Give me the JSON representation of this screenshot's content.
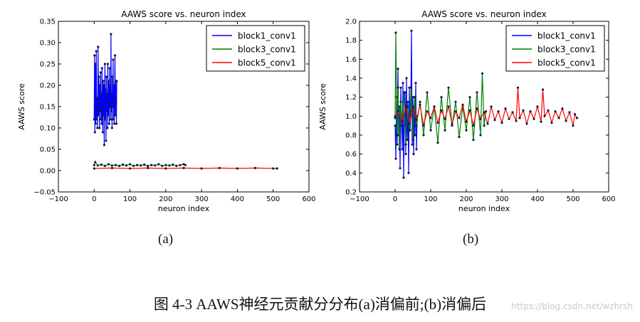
{
  "caption": "图 4-3 AAWS神经元贡献分分布(a)消偏前;(b)消偏后",
  "watermark": "https://blog.csdn.net/wzhrsh",
  "chart_data": [
    {
      "panel_label": "(a)",
      "type": "line",
      "title": "AAWS score vs. neuron index",
      "xlabel": "neuron index",
      "ylabel": "AAWS score",
      "xlim": [
        -100,
        600
      ],
      "ylim": [
        -0.05,
        0.35
      ],
      "xticks": [
        "−100",
        "0",
        "100",
        "200",
        "300",
        "400",
        "500",
        "600"
      ],
      "xtick_values": [
        -100,
        0,
        100,
        200,
        300,
        400,
        500,
        600
      ],
      "yticks": [
        "−0.05",
        "0.00",
        "0.05",
        "0.10",
        "0.15",
        "0.20",
        "0.25",
        "0.30",
        "0.35"
      ],
      "ytick_values": [
        -0.05,
        0,
        0.05,
        0.1,
        0.15,
        0.2,
        0.25,
        0.3,
        0.35
      ],
      "legend_position": "top-right",
      "grid": false,
      "series": [
        {
          "name": "block1_conv1",
          "color": "#0000ff",
          "points": [
            [
              0,
              0.12
            ],
            [
              1,
              0.27
            ],
            [
              2,
              0.09
            ],
            [
              3,
              0.25
            ],
            [
              4,
              0.11
            ],
            [
              5,
              0.15
            ],
            [
              6,
              0.28
            ],
            [
              7,
              0.12
            ],
            [
              8,
              0.17
            ],
            [
              9,
              0.1
            ],
            [
              10,
              0.14
            ],
            [
              11,
              0.29
            ],
            [
              12,
              0.13
            ],
            [
              13,
              0.22
            ],
            [
              14,
              0.16
            ],
            [
              15,
              0.1
            ],
            [
              16,
              0.2
            ],
            [
              17,
              0.14
            ],
            [
              18,
              0.23
            ],
            [
              19,
              0.12
            ],
            [
              20,
              0.18
            ],
            [
              21,
              0.11
            ],
            [
              22,
              0.24
            ],
            [
              23,
              0.15
            ],
            [
              24,
              0.09
            ],
            [
              25,
              0.21
            ],
            [
              26,
              0.13
            ],
            [
              27,
              0.2
            ],
            [
              28,
              0.06
            ],
            [
              29,
              0.17
            ],
            [
              30,
              0.25
            ],
            [
              31,
              0.12
            ],
            [
              32,
              0.19
            ],
            [
              33,
              0.07
            ],
            [
              34,
              0.22
            ],
            [
              35,
              0.14
            ],
            [
              36,
              0.18
            ],
            [
              37,
              0.1
            ],
            [
              38,
              0.25
            ],
            [
              39,
              0.13
            ],
            [
              40,
              0.21
            ],
            [
              41,
              0.16
            ],
            [
              42,
              0.11
            ],
            [
              43,
              0.24
            ],
            [
              44,
              0.15
            ],
            [
              45,
              0.2
            ],
            [
              46,
              0.12
            ],
            [
              47,
              0.32
            ],
            [
              48,
              0.14
            ],
            [
              49,
              0.18
            ],
            [
              50,
              0.1
            ],
            [
              51,
              0.22
            ],
            [
              52,
              0.15
            ],
            [
              53,
              0.26
            ],
            [
              54,
              0.12
            ],
            [
              55,
              0.2
            ],
            [
              56,
              0.11
            ],
            [
              57,
              0.17
            ],
            [
              58,
              0.27
            ],
            [
              59,
              0.13
            ],
            [
              60,
              0.21
            ],
            [
              61,
              0.16
            ],
            [
              62,
              0.11
            ],
            [
              63,
              0.21
            ]
          ]
        },
        {
          "name": "block3_conv1",
          "color": "#008000",
          "points": [
            [
              0,
              0.013
            ],
            [
              3,
              0.02
            ],
            [
              10,
              0.012
            ],
            [
              20,
              0.014
            ],
            [
              30,
              0.011
            ],
            [
              40,
              0.015
            ],
            [
              50,
              0.012
            ],
            [
              60,
              0.013
            ],
            [
              70,
              0.011
            ],
            [
              80,
              0.014
            ],
            [
              90,
              0.012
            ],
            [
              100,
              0.015
            ],
            [
              110,
              0.011
            ],
            [
              120,
              0.013
            ],
            [
              130,
              0.012
            ],
            [
              140,
              0.014
            ],
            [
              150,
              0.011
            ],
            [
              160,
              0.013
            ],
            [
              170,
              0.012
            ],
            [
              180,
              0.015
            ],
            [
              190,
              0.011
            ],
            [
              200,
              0.013
            ],
            [
              210,
              0.012
            ],
            [
              220,
              0.014
            ],
            [
              230,
              0.011
            ],
            [
              240,
              0.013
            ],
            [
              250,
              0.015
            ],
            [
              255,
              0.013
            ]
          ]
        },
        {
          "name": "block5_conv1",
          "color": "#ff0000",
          "points": [
            [
              0,
              0.005
            ],
            [
              50,
              0.006
            ],
            [
              100,
              0.005
            ],
            [
              150,
              0.006
            ],
            [
              200,
              0.005
            ],
            [
              250,
              0.006
            ],
            [
              300,
              0.005
            ],
            [
              350,
              0.006
            ],
            [
              400,
              0.005
            ],
            [
              450,
              0.006
            ],
            [
              500,
              0.005
            ],
            [
              511,
              0.005
            ]
          ]
        }
      ]
    },
    {
      "panel_label": "(b)",
      "type": "line",
      "title": "AAWS score vs. neuron index",
      "xlabel": "neuron index",
      "ylabel": "AAWS score",
      "xlim": [
        -100,
        600
      ],
      "ylim": [
        0.2,
        2.0
      ],
      "xticks": [
        "−100",
        "0",
        "100",
        "200",
        "300",
        "400",
        "500",
        "600"
      ],
      "xtick_values": [
        -100,
        0,
        100,
        200,
        300,
        400,
        500,
        600
      ],
      "yticks": [
        "0.2",
        "0.4",
        "0.6",
        "0.8",
        "1.0",
        "1.2",
        "1.4",
        "1.6",
        "1.8",
        "2.0"
      ],
      "ytick_values": [
        0.2,
        0.4,
        0.6,
        0.8,
        1.0,
        1.2,
        1.4,
        1.6,
        1.8,
        2.0
      ],
      "legend_position": "top-right",
      "grid": false,
      "series": [
        {
          "name": "block1_conv1",
          "color": "#0000ff",
          "points": [
            [
              0,
              0.9
            ],
            [
              2,
              0.55
            ],
            [
              4,
              1.2
            ],
            [
              6,
              0.7
            ],
            [
              8,
              1.5
            ],
            [
              10,
              0.8
            ],
            [
              12,
              1.1
            ],
            [
              14,
              0.45
            ],
            [
              16,
              1.3
            ],
            [
              18,
              0.9
            ],
            [
              20,
              0.65
            ],
            [
              22,
              1.35
            ],
            [
              24,
              0.35
            ],
            [
              26,
              1.0
            ],
            [
              28,
              1.25
            ],
            [
              30,
              0.6
            ],
            [
              32,
              1.4
            ],
            [
              34,
              0.75
            ],
            [
              36,
              1.15
            ],
            [
              38,
              0.4
            ],
            [
              40,
              1.3
            ],
            [
              42,
              0.85
            ],
            [
              44,
              1.05
            ],
            [
              46,
              1.9
            ],
            [
              48,
              0.7
            ],
            [
              50,
              1.2
            ],
            [
              52,
              0.6
            ],
            [
              54,
              1.1
            ],
            [
              56,
              0.8
            ],
            [
              58,
              1.35
            ],
            [
              60,
              0.65
            ],
            [
              62,
              1.0
            ]
          ]
        },
        {
          "name": "block3_conv1",
          "color": "#008000",
          "points": [
            [
              0,
              1.0
            ],
            [
              2,
              1.88
            ],
            [
              5,
              0.8
            ],
            [
              8,
              1.3
            ],
            [
              12,
              0.65
            ],
            [
              16,
              1.15
            ],
            [
              20,
              0.9
            ],
            [
              25,
              1.25
            ],
            [
              30,
              0.7
            ],
            [
              35,
              1.1
            ],
            [
              40,
              0.85
            ],
            [
              45,
              1.3
            ],
            [
              50,
              0.75
            ],
            [
              55,
              1.2
            ],
            [
              60,
              0.9
            ],
            [
              70,
              1.15
            ],
            [
              80,
              0.8
            ],
            [
              90,
              1.25
            ],
            [
              100,
              0.85
            ],
            [
              110,
              1.1
            ],
            [
              120,
              0.72
            ],
            [
              130,
              1.2
            ],
            [
              140,
              0.85
            ],
            [
              150,
              1.3
            ],
            [
              160,
              0.9
            ],
            [
              170,
              1.15
            ],
            [
              180,
              0.78
            ],
            [
              190,
              1.1
            ],
            [
              200,
              0.85
            ],
            [
              210,
              1.2
            ],
            [
              220,
              0.75
            ],
            [
              230,
              1.25
            ],
            [
              240,
              0.8
            ],
            [
              245,
              1.45
            ],
            [
              250,
              0.9
            ],
            [
              255,
              1.05
            ]
          ]
        },
        {
          "name": "block5_conv1",
          "color": "#ff0000",
          "points": [
            [
              0,
              0.98
            ],
            [
              10,
              1.05
            ],
            [
              20,
              0.95
            ],
            [
              30,
              1.1
            ],
            [
              40,
              0.92
            ],
            [
              50,
              1.08
            ],
            [
              60,
              0.96
            ],
            [
              70,
              1.12
            ],
            [
              80,
              0.9
            ],
            [
              90,
              1.05
            ],
            [
              100,
              0.98
            ],
            [
              110,
              1.1
            ],
            [
              120,
              0.93
            ],
            [
              130,
              1.06
            ],
            [
              140,
              0.97
            ],
            [
              150,
              1.1
            ],
            [
              160,
              0.92
            ],
            [
              170,
              1.05
            ],
            [
              180,
              0.98
            ],
            [
              190,
              1.12
            ],
            [
              200,
              0.94
            ],
            [
              210,
              1.06
            ],
            [
              220,
              0.9
            ],
            [
              230,
              1.08
            ],
            [
              240,
              0.97
            ],
            [
              250,
              1.04
            ],
            [
              260,
              0.92
            ],
            [
              270,
              1.1
            ],
            [
              280,
              0.96
            ],
            [
              290,
              1.05
            ],
            [
              300,
              0.93
            ],
            [
              310,
              1.08
            ],
            [
              320,
              0.97
            ],
            [
              330,
              1.04
            ],
            [
              340,
              0.95
            ],
            [
              345,
              1.3
            ],
            [
              350,
              0.98
            ],
            [
              360,
              1.06
            ],
            [
              370,
              0.92
            ],
            [
              380,
              1.05
            ],
            [
              390,
              0.97
            ],
            [
              400,
              1.1
            ],
            [
              410,
              0.94
            ],
            [
              415,
              1.28
            ],
            [
              420,
              1.0
            ],
            [
              430,
              1.06
            ],
            [
              440,
              0.93
            ],
            [
              450,
              1.05
            ],
            [
              460,
              0.98
            ],
            [
              470,
              1.08
            ],
            [
              480,
              0.95
            ],
            [
              490,
              1.04
            ],
            [
              500,
              0.9
            ],
            [
              505,
              1.02
            ],
            [
              511,
              0.98
            ]
          ]
        }
      ]
    }
  ]
}
